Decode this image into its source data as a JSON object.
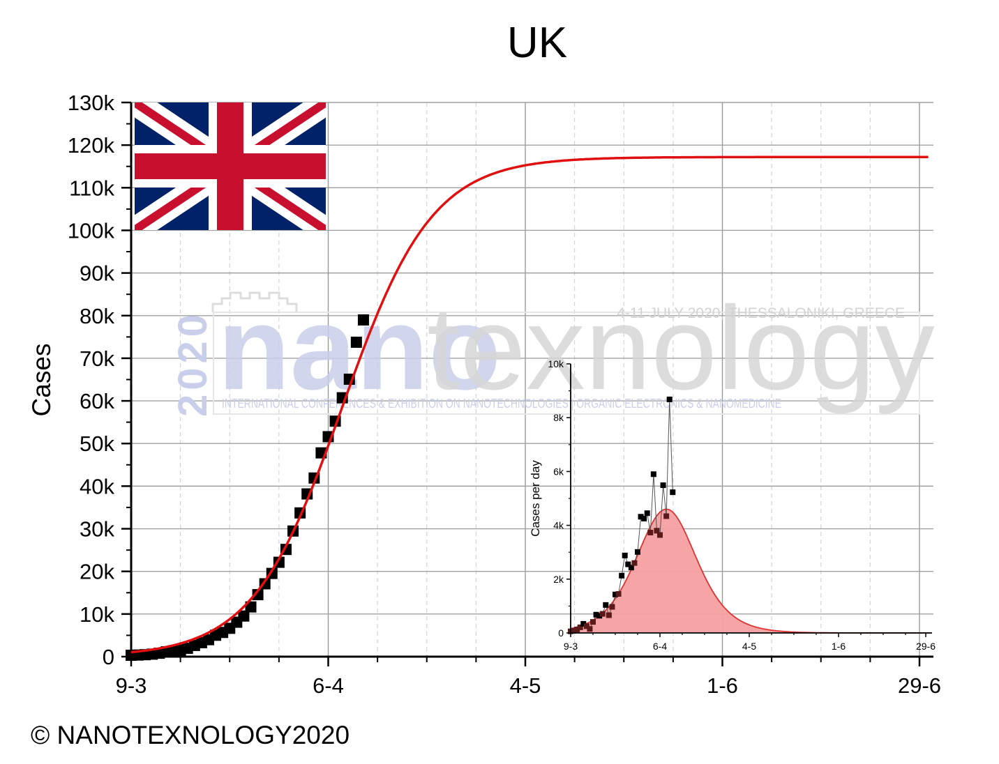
{
  "chart_data": [
    {
      "type": "scatter",
      "title": "UK",
      "xlabel": "",
      "ylabel": "Cases",
      "x_tick_labels": [
        "9-3",
        "6-4",
        "4-5",
        "1-6",
        "29-6"
      ],
      "y_tick_labels": [
        "0",
        "10k",
        "20k",
        "30k",
        "40k",
        "50k",
        "60k",
        "70k",
        "80k",
        "90k",
        "100k",
        "110k",
        "120k",
        "130k"
      ],
      "xlim": [
        "2020-03-09",
        "2020-06-29"
      ],
      "ylim": [
        0,
        130000
      ],
      "grid": true,
      "series": [
        {
          "kind": "scatter",
          "color": "#000000",
          "points": [
            [
              "2020-03-09",
              320
            ],
            [
              "2020-03-10",
              380
            ],
            [
              "2020-03-11",
              460
            ],
            [
              "2020-03-12",
              590
            ],
            [
              "2020-03-13",
              800
            ],
            [
              "2020-03-14",
              1140
            ],
            [
              "2020-03-15",
              1390
            ],
            [
              "2020-03-16",
              1540
            ],
            [
              "2020-03-17",
              1950
            ],
            [
              "2020-03-18",
              2630
            ],
            [
              "2020-03-19",
              3270
            ],
            [
              "2020-03-20",
              3980
            ],
            [
              "2020-03-21",
              5020
            ],
            [
              "2020-03-22",
              5680
            ],
            [
              "2020-03-23",
              6650
            ],
            [
              "2020-03-24",
              8080
            ],
            [
              "2020-03-25",
              9530
            ],
            [
              "2020-03-26",
              11660
            ],
            [
              "2020-03-27",
              14540
            ],
            [
              "2020-03-28",
              17090
            ],
            [
              "2020-03-29",
              19520
            ],
            [
              "2020-03-30",
              22140
            ],
            [
              "2020-03-31",
              25150
            ],
            [
              "2020-04-01",
              29470
            ],
            [
              "2020-04-02",
              33720
            ],
            [
              "2020-04-03",
              38170
            ],
            [
              "2020-04-04",
              41900
            ],
            [
              "2020-04-05",
              47800
            ],
            [
              "2020-04-06",
              51600
            ],
            [
              "2020-04-07",
              55240
            ],
            [
              "2020-04-08",
              60730
            ],
            [
              "2020-04-09",
              65080
            ],
            [
              "2020-04-10",
              73760
            ],
            [
              "2020-04-11",
              78990
            ]
          ]
        },
        {
          "kind": "line",
          "color": "#e01010",
          "model": {
            "K": 117200,
            "midpoint": "2020-04-08",
            "rate": 0.157
          },
          "x_range": [
            "2020-03-09",
            "2020-06-29"
          ]
        }
      ]
    },
    {
      "type": "area",
      "inset": true,
      "title": "",
      "xlabel": "",
      "ylabel": "Cases per day",
      "x_tick_labels": [
        "9-3",
        "6-4",
        "4-5",
        "1-6",
        "29-6"
      ],
      "y_tick_labels": [
        "0",
        "2k",
        "4k",
        "6k",
        "8k",
        "10k"
      ],
      "xlim": [
        "2020-03-09",
        "2020-06-29"
      ],
      "ylim": [
        0,
        10000
      ],
      "grid": false,
      "series": [
        {
          "kind": "scatter",
          "color": "#000000",
          "points": [
            [
              "2020-03-09",
              60
            ],
            [
              "2020-03-10",
              80
            ],
            [
              "2020-03-11",
              130
            ],
            [
              "2020-03-12",
              210
            ],
            [
              "2020-03-13",
              340
            ],
            [
              "2020-03-14",
              250
            ],
            [
              "2020-03-15",
              150
            ],
            [
              "2020-03-16",
              410
            ],
            [
              "2020-03-17",
              680
            ],
            [
              "2020-03-18",
              640
            ],
            [
              "2020-03-19",
              710
            ],
            [
              "2020-03-20",
              1040
            ],
            [
              "2020-03-21",
              660
            ],
            [
              "2020-03-22",
              970
            ],
            [
              "2020-03-23",
              1430
            ],
            [
              "2020-03-24",
              1450
            ],
            [
              "2020-03-25",
              2130
            ],
            [
              "2020-03-26",
              2880
            ],
            [
              "2020-03-27",
              2550
            ],
            [
              "2020-03-28",
              2430
            ],
            [
              "2020-03-29",
              2600
            ],
            [
              "2020-03-30",
              3010
            ],
            [
              "2020-03-31",
              4320
            ],
            [
              "2020-04-01",
              4250
            ],
            [
              "2020-04-02",
              4450
            ],
            [
              "2020-04-03",
              3730
            ],
            [
              "2020-04-04",
              5900
            ],
            [
              "2020-04-05",
              3800
            ],
            [
              "2020-04-06",
              3640
            ],
            [
              "2020-04-07",
              5490
            ],
            [
              "2020-04-08",
              4340
            ],
            [
              "2020-04-09",
              8680
            ],
            [
              "2020-04-10",
              5230
            ]
          ]
        },
        {
          "kind": "area",
          "color": "#dd3333",
          "fill": "#f4a0a0",
          "model": {
            "K": 117200,
            "midpoint": "2020-04-08",
            "rate": 0.157
          },
          "x_range": [
            "2020-03-09",
            "2020-06-29"
          ]
        }
      ]
    }
  ],
  "watermark": {
    "year": "2020",
    "word_a": "nano",
    "word_b": "texnology",
    "dates": "4-11 JULY 2020, THESSALONIKI, GREECE",
    "subtitle": "INTERNATIONAL CONFERENCES & EXHIBITION ON NANOTECHNOLOGIES | ORGANIC ELECTRONICS & NANOMEDICINE"
  },
  "copyright": "© NANOTEXNOLOGY2020",
  "colors": {
    "flag_blue": "#012169",
    "flag_red": "#c8102e",
    "grid": "#bbbbbb",
    "watermark_blue": "#c9cfea",
    "watermark_grey": "#d8d8d8"
  }
}
